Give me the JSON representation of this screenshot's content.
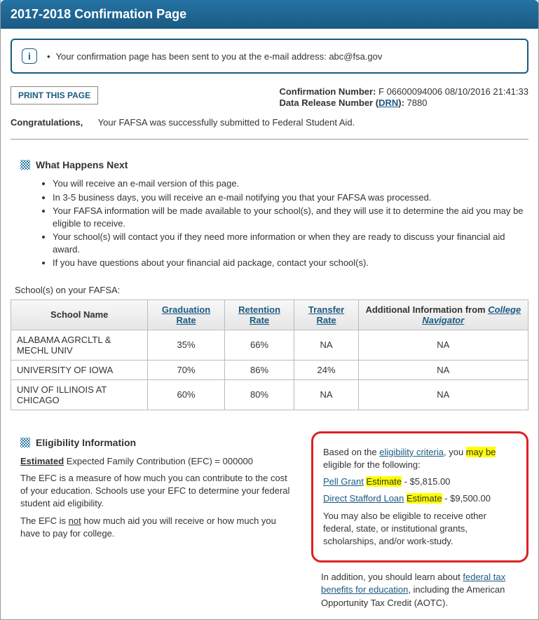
{
  "header": {
    "title": "2017-2018 Confirmation Page"
  },
  "notice": {
    "text": "Your confirmation page has been sent to you at the e-mail address: abc@fsa.gov"
  },
  "confirmation": {
    "number_label": "Confirmation Number:",
    "number_value": "F 06600094006 08/10/2016 21:41:33",
    "drn_label1": "Data Release Number (",
    "drn_link": "DRN",
    "drn_label2": "):",
    "drn_value": "7880"
  },
  "print": {
    "label": "PRINT THIS PAGE"
  },
  "congrats": {
    "heading": "Congratulations,",
    "text": "Your FAFSA was successfully submitted to Federal Student Aid."
  },
  "next": {
    "heading": "What Happens Next",
    "items": [
      "You will receive an e-mail version of this page.",
      "In 3-5 business days, you will receive an e-mail notifying you that your FAFSA was processed.",
      "Your FAFSA information will be made available to your school(s), and they will use it to determine the aid you may be eligible to receive.",
      "Your school(s) will contact you if they need more information or when they are ready to discuss your financial aid award.",
      "If you have questions about your financial aid package, contact your school(s)."
    ]
  },
  "schools": {
    "caption": "School(s) on your FAFSA:",
    "columns": {
      "name": "School Name",
      "grad": "Graduation Rate",
      "ret": "Retention Rate",
      "xfer": "Transfer Rate",
      "addl_pre": "Additional Information from ",
      "addl_link": "College Navigator"
    },
    "rows": [
      {
        "name": "ALABAMA AGRCLTL & MECHL UNIV",
        "grad": "35%",
        "ret": "66%",
        "xfer": "NA",
        "addl": "NA"
      },
      {
        "name": "UNIVERSITY OF IOWA",
        "grad": "70%",
        "ret": "86%",
        "xfer": "24%",
        "addl": "NA"
      },
      {
        "name": "UNIV OF ILLINOIS AT CHICAGO",
        "grad": "60%",
        "ret": "80%",
        "xfer": "NA",
        "addl": "NA"
      }
    ]
  },
  "elig": {
    "heading": "Eligibility Information",
    "efc_bold": "Estimated",
    "efc_rest": " Expected Family Contribution (EFC) = 000000",
    "p1": "The EFC is a measure of how much you can contribute to the cost of your education. Schools use your EFC to determine your federal student aid eligibility.",
    "p2a": "The EFC is ",
    "p2_not": "not",
    "p2b": " how much aid you will receive or how much you have to pay for college.",
    "box": {
      "intro_a": "Based on the ",
      "intro_link": "eligibility criteria",
      "intro_b": ", you ",
      "intro_hl": "may be",
      "intro_c": " eligible for the following:",
      "pell_link": "Pell Grant",
      "pell_hl": "Estimate",
      "pell_val": " - $5,815.00",
      "loan_link": "Direct Stafford Loan",
      "loan_hl": "Estimate",
      "loan_val": " - $9,500.00",
      "also": "You may also be eligible to receive other federal, state, or institutional grants, scholarships, and/or work-study."
    },
    "addl_a": "In addition, you should learn about ",
    "addl_link": "federal tax benefits for education",
    "addl_b": ", including the American Opportunity Tax Credit (AOTC)."
  }
}
